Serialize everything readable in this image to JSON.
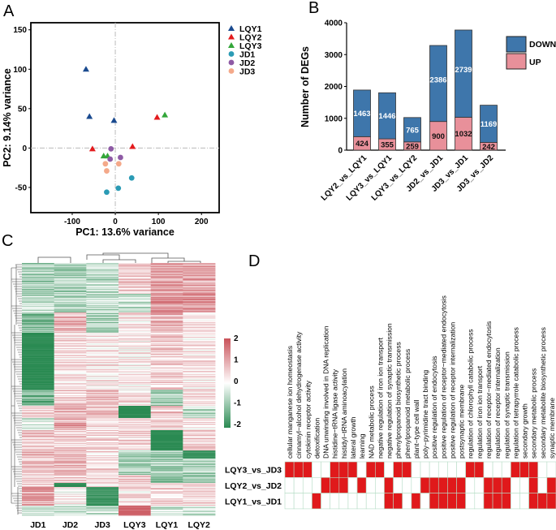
{
  "panel_labels": {
    "a": "A",
    "b": "B",
    "c": "C",
    "d": "D"
  },
  "chart_data": [
    {
      "id": "pca",
      "type": "scatter",
      "xlabel": "PC1: 13.6% variance",
      "ylabel": "PC2: 9.14% variance",
      "xlim": [
        -196,
        241
      ],
      "ylim": [
        -82,
        159
      ],
      "xticks": [
        -100,
        0,
        100,
        200
      ],
      "yticks": [
        -50,
        0,
        50,
        100,
        150
      ],
      "reference_lines": {
        "x": 0,
        "y": 0
      },
      "legend_position": "right",
      "series": [
        {
          "name": "LQY1",
          "marker": "triangle",
          "color": "#1a4a8f",
          "points": [
            [
              -68,
              100
            ],
            [
              -60,
              40
            ],
            [
              -3,
              35
            ]
          ]
        },
        {
          "name": "LQY2",
          "marker": "triangle",
          "color": "#e31a1c",
          "points": [
            [
              -53,
              -1
            ],
            [
              40,
              2
            ],
            [
              97,
              39
            ]
          ]
        },
        {
          "name": "LQY3",
          "marker": "triangle",
          "color": "#33a639",
          "points": [
            [
              -27,
              -10
            ],
            [
              -18,
              -10
            ],
            [
              115,
              42
            ]
          ]
        },
        {
          "name": "JD1",
          "marker": "circle",
          "color": "#2b9bb5",
          "points": [
            [
              -20,
              -56
            ],
            [
              7,
              -51
            ],
            [
              38,
              -38
            ]
          ]
        },
        {
          "name": "JD2",
          "marker": "circle",
          "color": "#8e5aa5",
          "points": [
            [
              -10,
              -1
            ],
            [
              -12,
              -14
            ],
            [
              12,
              -12
            ]
          ]
        },
        {
          "name": "JD3",
          "marker": "circle",
          "color": "#f4a98a",
          "points": [
            [
              -23,
              -20
            ],
            [
              -20,
              -29
            ],
            [
              8,
              -20
            ]
          ]
        }
      ]
    },
    {
      "id": "degs",
      "type": "bar",
      "stacked": true,
      "ylabel": "Number of DEGs",
      "ylim": [
        0,
        4000
      ],
      "yticks": [
        0,
        1000,
        2000,
        3000,
        4000
      ],
      "categories": [
        "LQY2_vs_LQY1",
        "LQY3_vs_LQY1",
        "LQY3_vs_LQY2",
        "JD2_vs_JD1",
        "JD3_vs_JD1",
        "JD3_vs_JD2"
      ],
      "legend_position": "top-right",
      "series": [
        {
          "name": "UP",
          "color": "#e8909a",
          "values": [
            424,
            355,
            259,
            900,
            1032,
            242
          ]
        },
        {
          "name": "DOWN",
          "color": "#3e76ab",
          "values": [
            1463,
            1446,
            765,
            2386,
            2739,
            1169
          ]
        }
      ]
    },
    {
      "id": "expression-heatmap",
      "type": "heatmap",
      "columns": [
        "JD1",
        "JD2",
        "JD3",
        "LQY3",
        "LQY1",
        "LQY2"
      ],
      "color_scale": {
        "min": -2,
        "max": 2,
        "ticks": [
          2,
          1,
          0,
          -1,
          -2
        ],
        "low": "#2a8a52",
        "mid": "#ffffff",
        "high": "#c9525a"
      },
      "row_blocks": [
        {
          "rows": 38,
          "means": [
            -0.8,
            -0.8,
            -0.6,
            0.6,
            1.0,
            1.0
          ]
        },
        {
          "rows": 23,
          "means": [
            -0.6,
            -0.6,
            -0.6,
            -0.6,
            1.2,
            1.2
          ]
        },
        {
          "rows": 25,
          "means": [
            -1.2,
            0.8,
            -0.8,
            0.3,
            0.8,
            0.4
          ]
        },
        {
          "rows": 70,
          "means": [
            -2.0,
            0.4,
            0.3,
            0.2,
            0.5,
            0.3
          ]
        },
        {
          "rows": 20,
          "means": [
            -1.3,
            0.5,
            0.8,
            0.3,
            -0.8,
            0.4
          ]
        },
        {
          "rows": 15,
          "means": [
            0.5,
            0.8,
            0.6,
            -2.0,
            0.6,
            -0.6
          ]
        },
        {
          "rows": 15,
          "means": [
            -0.4,
            1.0,
            0.4,
            0.3,
            0.4,
            0.3
          ]
        },
        {
          "rows": 25,
          "means": [
            0.6,
            0.5,
            0.4,
            0.4,
            -2.0,
            0.5
          ]
        },
        {
          "rows": 10,
          "means": [
            0.8,
            0.8,
            0.4,
            -0.8,
            -0.8,
            -1.8
          ]
        },
        {
          "rows": 20,
          "means": [
            0.6,
            0.9,
            0.5,
            -0.8,
            -0.8,
            -0.8
          ]
        },
        {
          "rows": 10,
          "means": [
            0.4,
            0.5,
            0.4,
            0.6,
            -1.2,
            -1.0
          ]
        },
        {
          "rows": 5,
          "means": [
            0.5,
            -2.0,
            0.3,
            0.4,
            0.4,
            0.3
          ]
        },
        {
          "rows": 23,
          "means": [
            1.0,
            0.1,
            -1.8,
            0.3,
            0.5,
            0.4
          ]
        },
        {
          "rows": 12,
          "means": [
            -0.5,
            -0.5,
            -0.5,
            1.8,
            -0.5,
            -0.5
          ]
        }
      ]
    },
    {
      "id": "go-enrichment-matrix",
      "type": "heatmap",
      "rows": [
        "LQY3_vs_JD3",
        "LQY2_vs_JD2",
        "LQY1_vs_JD1"
      ],
      "columns": [
        "cellular manganese ion homeostasis",
        "cinnamyl−alcohol dehydrogenase activity",
        "cytokinin receptor activity",
        "detoxification",
        "DNA unwinding involved in DNA replication",
        "histidine−tRNA ligase activity",
        "histidyl−tRNA aminoacylation",
        "lateral growth",
        "learning",
        "NAD metabolic process",
        "negative regulation of iron ion transport",
        "negative regulation of synaptic transmission",
        "phenylpropanoid biosynthetic process",
        "phenylpropanoid metabolic process",
        "plant−type cell wall",
        "poly−pyrimidine tract binding",
        "positive regulation of endocytosis",
        "positive regulation of receptor−mediated endocytosis",
        "positive regulation of receptor internalization",
        "postsynaptic membrane",
        "regulation of chlorophyll catabolic process",
        "regulation of iron ion transport",
        "regulation of receptor−mediated endocytosis",
        "regulation of receptor internalization",
        "regulation of synaptic transmission",
        "regulation of tetrapyrrole catabolic process",
        "secondary growth",
        "secondary metabolic process",
        "secondary metabolite biosynthetic process",
        "synaptic membrane"
      ],
      "enriched_color": "#e0191b",
      "values": [
        [
          1,
          1,
          1,
          0,
          0,
          1,
          1,
          1,
          0,
          1,
          1,
          0,
          1,
          1,
          0,
          0,
          0,
          0,
          0,
          0,
          1,
          1,
          0,
          0,
          0,
          1,
          1,
          1,
          0,
          0
        ],
        [
          0,
          0,
          0,
          0,
          1,
          1,
          1,
          0,
          1,
          0,
          0,
          1,
          0,
          0,
          0,
          1,
          1,
          1,
          1,
          1,
          0,
          0,
          1,
          1,
          1,
          0,
          0,
          1,
          0,
          1
        ],
        [
          0,
          0,
          0,
          1,
          0,
          0,
          0,
          0,
          0,
          0,
          0,
          1,
          1,
          0,
          1,
          0,
          1,
          1,
          1,
          1,
          0,
          0,
          1,
          1,
          1,
          0,
          0,
          1,
          1,
          1
        ]
      ]
    }
  ]
}
